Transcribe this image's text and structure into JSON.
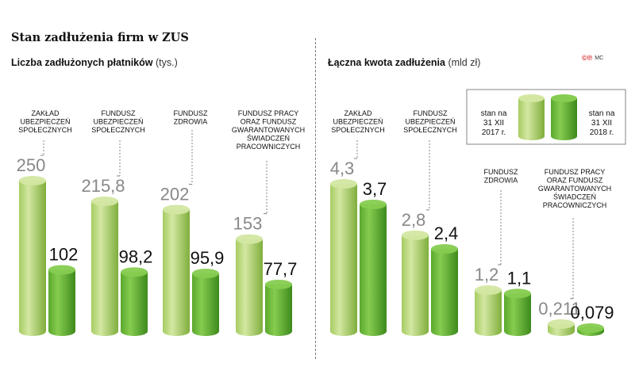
{
  "title": "Stan zadłużenia firm w ZUS",
  "logo": {
    "text": "©℗",
    "mc": "MC"
  },
  "colors": {
    "bar2017_light": "#d3e7a2",
    "bar2017_mid": "#a6cc62",
    "bar2017_dark": "#7fae3c",
    "bar2018_light": "#86cc50",
    "bar2018_mid": "#5aa82c",
    "bar2018_dark": "#3d8a1c",
    "value2017": "#888888",
    "value2018": "#111111",
    "leader": "#666666"
  },
  "legend": {
    "label_2017": [
      "stan na",
      "31 XII",
      "2017 r."
    ],
    "label_2018": [
      "stan na",
      "31 XII",
      "2018 r."
    ]
  },
  "chart_data": [
    {
      "type": "bar",
      "title": "Liczba zadłużonych płatników",
      "unit": "(tys.)",
      "categories": [
        [
          "ZAKŁAD",
          "UBEZPIECZEŃ",
          "SPOŁECZNYCH"
        ],
        [
          "FUNDUSZ",
          "UBEZPIECZEŃ",
          "SPOŁECZNYCH"
        ],
        [
          "FUNDUSZ",
          "ZDROWIA"
        ],
        [
          "FUNDUSZ PRACY",
          "ORAZ FUNDUSZ",
          "GWARANTOWANYCH",
          "ŚWIADCZEŃ",
          "PRACOWNICZYCH"
        ]
      ],
      "series": [
        {
          "name": "stan na 31 XII 2017 r.",
          "values": [
            250,
            215.8,
            202,
            153
          ],
          "labels": [
            "250",
            "215,8",
            "202",
            "153"
          ]
        },
        {
          "name": "stan na 31 XII 2018 r.",
          "values": [
            102,
            98.2,
            95.9,
            77.7
          ],
          "labels": [
            "102",
            "98,2",
            "95,9",
            "77,7"
          ]
        }
      ],
      "ylim": [
        0,
        250
      ]
    },
    {
      "type": "bar",
      "title": "Łączna kwota zadłużenia",
      "unit": "(mld zł)",
      "categories": [
        [
          "ZAKŁAD",
          "UBEZPIECZEŃ",
          "SPOŁECZNYCH"
        ],
        [
          "FUNDUSZ",
          "UBEZPIECZEŃ",
          "SPOŁECZNYCH"
        ],
        [
          "FUNDUSZ",
          "ZDROWIA"
        ],
        [
          "FUNDUSZ PRACY",
          "ORAZ FUNDUSZ",
          "GWARANTOWANYCH",
          "ŚWIADCZEŃ",
          "PRACOWNICZYCH"
        ]
      ],
      "series": [
        {
          "name": "stan na 31 XII 2017 r.",
          "values": [
            4.3,
            2.8,
            1.2,
            0.211
          ],
          "labels": [
            "4,3",
            "2,8",
            "1,2",
            "0,211"
          ]
        },
        {
          "name": "stan na 31 XII 2018 r.",
          "values": [
            3.7,
            2.4,
            1.1,
            0.079
          ],
          "labels": [
            "3,7",
            "2,4",
            "1,1",
            "0,079"
          ]
        }
      ],
      "ylim": [
        0,
        4.3
      ]
    }
  ]
}
